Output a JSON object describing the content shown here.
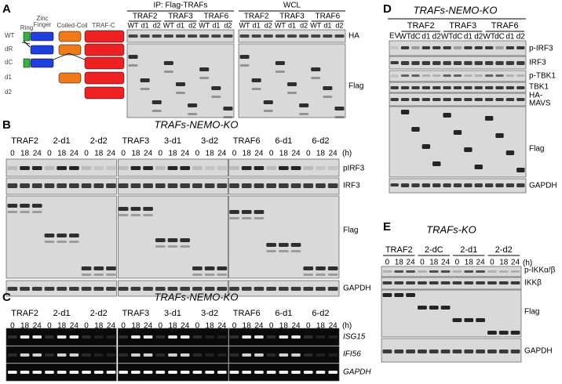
{
  "panels": [
    {
      "label": "A",
      "domains": [
        "Ring",
        "Zinc",
        "Finger",
        "Coiled-Coil",
        "TRAF-C"
      ],
      "constructs": [
        "WT",
        "dR",
        "dC",
        "d1",
        "d2"
      ],
      "blots": [
        {
          "title": "IP: Flag-TRAFs",
          "groups": [
            {
              "name": "TRAF2",
              "lanes": [
                "WT",
                "d1",
                "d2"
              ]
            },
            {
              "name": "TRAF3",
              "lanes": [
                "WT",
                "d1",
                "d2"
              ]
            },
            {
              "name": "TRAF6",
              "lanes": [
                "WT",
                "d1",
                "d2"
              ]
            }
          ]
        },
        {
          "title": "WCL",
          "groups": [
            {
              "name": "TRAF2",
              "lanes": [
                "WT",
                "d1",
                "d2"
              ]
            },
            {
              "name": "TRAF3",
              "lanes": [
                "WT",
                "d1",
                "d2"
              ]
            },
            {
              "name": "TRAF6",
              "lanes": [
                "WT",
                "d1",
                "d2"
              ]
            }
          ]
        }
      ],
      "row_labels": [
        "HA",
        "Flag"
      ]
    },
    {
      "label": "B",
      "title": "TRAFs-NEMO-KO",
      "groups": [
        {
          "name": "TRAF2",
          "times": [
            "0",
            "18",
            "24"
          ]
        },
        {
          "name": "2-d1",
          "times": [
            "0",
            "18",
            "24"
          ]
        },
        {
          "name": "2-d2",
          "times": [
            "0",
            "18",
            "24"
          ]
        },
        {
          "name": "TRAF3",
          "times": [
            "0",
            "18",
            "24"
          ]
        },
        {
          "name": "3-d1",
          "times": [
            "0",
            "18",
            "24"
          ]
        },
        {
          "name": "3-d2",
          "times": [
            "0",
            "18",
            "24"
          ]
        },
        {
          "name": "TRAF6",
          "times": [
            "0",
            "18",
            "24"
          ]
        },
        {
          "name": "6-d1",
          "times": [
            "0",
            "18",
            "24"
          ]
        },
        {
          "name": "6-d2",
          "times": [
            "0",
            "18",
            "24"
          ]
        }
      ],
      "unit": "(h)",
      "row_labels": [
        "pIRF3",
        "IRF3",
        "Flag",
        "GAPDH"
      ]
    },
    {
      "label": "C",
      "title": "TRAFs-NEMO-KO",
      "groups": [
        {
          "name": "TRAF2",
          "times": [
            "0",
            "18",
            "24"
          ]
        },
        {
          "name": "2-d1",
          "times": [
            "0",
            "18",
            "24"
          ]
        },
        {
          "name": "2-d2",
          "times": [
            "0",
            "18",
            "24"
          ]
        },
        {
          "name": "TRAF3",
          "times": [
            "0",
            "18",
            "24"
          ]
        },
        {
          "name": "3-d1",
          "times": [
            "0",
            "18",
            "24"
          ]
        },
        {
          "name": "3-d2",
          "times": [
            "0",
            "18",
            "24"
          ]
        },
        {
          "name": "TRAF6",
          "times": [
            "0",
            "18",
            "24"
          ]
        },
        {
          "name": "6-d1",
          "times": [
            "0",
            "18",
            "24"
          ]
        },
        {
          "name": "6-d2",
          "times": [
            "0",
            "18",
            "24"
          ]
        }
      ],
      "unit": "(h)",
      "row_labels": [
        "ISG15",
        "IFI56",
        "GAPDH"
      ]
    },
    {
      "label": "D",
      "title": "TRAFs-NEMO-KO",
      "control_lane": "EV",
      "groups": [
        {
          "name": "TRAF2",
          "lanes": [
            "WT",
            "dC",
            "d1",
            "d2"
          ]
        },
        {
          "name": "TRAF3",
          "lanes": [
            "WT",
            "dC",
            "d1",
            "d2"
          ]
        },
        {
          "name": "TRAF6",
          "lanes": [
            "WT",
            "dC",
            "d1",
            "d2"
          ]
        }
      ],
      "row_labels": [
        "p-IRF3",
        "IRF3",
        "p-TBK1",
        "TBK1",
        "HA-",
        "MAVS",
        "Flag",
        "GAPDH"
      ]
    },
    {
      "label": "E",
      "title": "TRAFs-KO",
      "groups": [
        {
          "name": "TRAF2",
          "times": [
            "0",
            "18",
            "24"
          ]
        },
        {
          "name": "2-dC",
          "times": [
            "0",
            "18",
            "24"
          ]
        },
        {
          "name": "2-d1",
          "times": [
            "0",
            "18",
            "24"
          ]
        },
        {
          "name": "2-d2",
          "times": [
            "0",
            "18",
            "24"
          ]
        }
      ],
      "unit": "(h)",
      "row_labels": [
        "p-IKKα/β",
        "IKKβ",
        "Flag",
        "GAPDH"
      ]
    }
  ]
}
